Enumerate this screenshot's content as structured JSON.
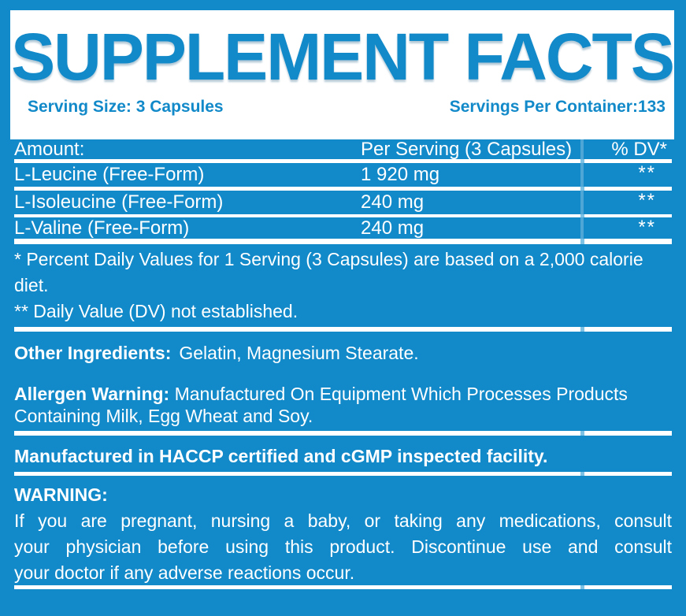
{
  "colors": {
    "brand_blue": "#1289c9",
    "panel_white": "#ffffff",
    "divider_light_blue": "#7ec3e6"
  },
  "header": {
    "title": "SUPPLEMENT FACTS",
    "serving_size": "Serving Size: 3 Capsules",
    "servings_per_container": "Servings Per Container:133"
  },
  "table": {
    "columns": [
      "Amount:",
      "Per Serving (3 Capsules)",
      "% DV*"
    ],
    "rows": [
      {
        "name": "L-Leucine (Free-Form)",
        "amount": "1 920 mg",
        "dv": "**"
      },
      {
        "name": "L-Isoleucine (Free-Form)",
        "amount": "240 mg",
        "dv": "**"
      },
      {
        "name": "L-Valine (Free-Form)",
        "amount": "240 mg",
        "dv": "**"
      }
    ]
  },
  "footnotes": {
    "lines": [
      "* Percent Daily Values for 1 Serving (3 Capsules) are based on a 2,000 calorie",
      "diet.",
      "** Daily Value (DV) not established."
    ]
  },
  "other_ingredients": {
    "label": "Other Ingredients:",
    "value": "Gelatin, Magnesium Stearate."
  },
  "allergen": {
    "label": "Allergen Warning:",
    "line1": "Manufactured On Equipment Which Processes Products",
    "line2": "Containing Milk, Egg Wheat and Soy."
  },
  "manufacturing": {
    "text": "Manufactured in HACCP certified and cGMP inspected facility."
  },
  "warning": {
    "label": "WARNING:",
    "lines": [
      "If you are pregnant, nursing a baby, or taking any medications, consult",
      "your physician before using this product. Discontinue use and consult",
      "your doctor if any adverse reactions occur."
    ]
  }
}
